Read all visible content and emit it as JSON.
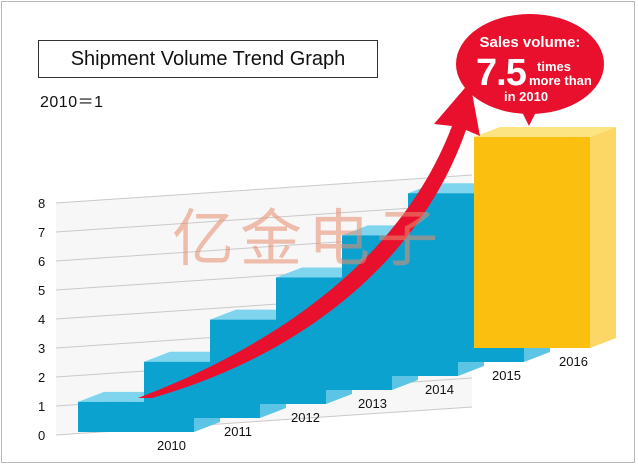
{
  "header": {
    "title": "Shipment Volume Trend Graph",
    "subtitle": "2010＝1"
  },
  "watermark": "亿金电子",
  "callout": {
    "line1": "Sales volume:",
    "number": "7.5",
    "times": "times",
    "more": "more than",
    "year": "in 2010"
  },
  "colors": {
    "bar_front": "#0ca2cf",
    "bar_top": "#7fd5ee",
    "bar_side": "#5cc4e4",
    "highlight_front": "#fbbf0f",
    "highlight_top": "#fde483",
    "highlight_side": "#fdd766",
    "arrow": "#e8102d"
  },
  "chart_data": {
    "type": "bar",
    "categories": [
      "2010",
      "2011",
      "2012",
      "2013",
      "2014",
      "2015",
      "2016"
    ],
    "values": [
      1,
      2,
      3,
      4,
      5,
      6,
      7.5
    ],
    "y_ticks": [
      "0",
      "1",
      "2",
      "3",
      "4",
      "5",
      "6",
      "7",
      "8"
    ],
    "ylim": [
      0,
      8
    ],
    "highlight_category": "2016",
    "grid": true,
    "three_d": true,
    "trend_arrow": true
  }
}
